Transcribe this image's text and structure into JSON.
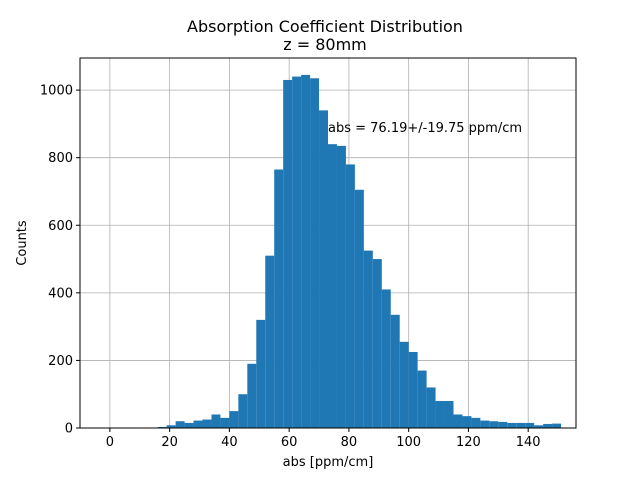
{
  "chart_data": {
    "type": "bar",
    "title": "Absorption Coefficient Distribution",
    "subtitle": "z = 80mm",
    "xlabel": "abs [ppm/cm]",
    "ylabel": "Counts",
    "annotation": "abs = 76.19+/-19.75 ppm/cm",
    "xlim": [
      -10,
      156
    ],
    "ylim": [
      0,
      1095
    ],
    "xticks": [
      0,
      20,
      40,
      60,
      80,
      100,
      120,
      140
    ],
    "yticks": [
      0,
      200,
      400,
      600,
      800,
      1000
    ],
    "grid": true,
    "bar_color": "#1f77b4",
    "annotation_color": "#0000ff",
    "bin_edges": [
      16,
      19,
      22,
      25,
      28,
      31,
      34,
      37,
      40,
      43,
      46,
      49,
      52,
      55,
      58,
      61,
      64,
      67,
      70,
      73,
      76,
      79,
      82,
      85,
      88,
      91,
      94,
      97,
      100,
      103,
      106,
      109,
      112,
      115,
      118,
      121,
      124,
      127,
      130,
      133,
      136,
      139,
      142,
      145,
      148,
      151
    ],
    "values": [
      3,
      8,
      20,
      15,
      22,
      25,
      40,
      30,
      50,
      100,
      190,
      320,
      510,
      765,
      1030,
      1040,
      1045,
      1035,
      940,
      840,
      835,
      780,
      705,
      525,
      500,
      410,
      335,
      255,
      225,
      170,
      120,
      80,
      80,
      40,
      35,
      30,
      22,
      20,
      18,
      15,
      15,
      15,
      8,
      12,
      13
    ]
  }
}
